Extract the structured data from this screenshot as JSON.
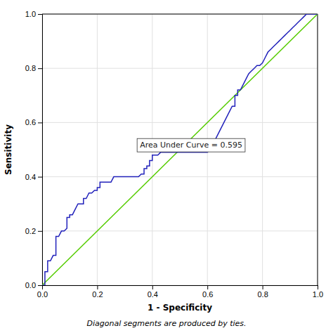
{
  "chart_data": {
    "type": "line",
    "x_label": "1 - Specificity",
    "y_label": "Sensitivity",
    "footnote": "Diagonal segments are produced by ties.",
    "annotations": [
      {
        "text": "Area Under Curve = 0.595",
        "x": 0.355,
        "y": 0.515
      }
    ],
    "xlim": [
      0.0,
      1.0
    ],
    "ylim": [
      0.0,
      1.0
    ],
    "xticks": [
      {
        "value": 0.0,
        "label": "0.0"
      },
      0.2,
      0.4,
      0.6,
      0.8,
      {
        "value": 1.0,
        "label": "1.0"
      }
    ],
    "yticks": [
      {
        "value": 0.0,
        "label": "0.0"
      },
      0.2,
      0.4,
      0.6,
      0.8,
      {
        "value": 1.0,
        "label": "1.0"
      }
    ],
    "grid": true,
    "series": [
      {
        "color": "#55cc00",
        "x": [
          0.0,
          1.0
        ],
        "values": [
          0.0,
          1.0
        ]
      },
      {
        "color": "#2222bb",
        "x": [
          0.0,
          0.01,
          0.01,
          0.02,
          0.02,
          0.03,
          0.04,
          0.05,
          0.05,
          0.06,
          0.07,
          0.08,
          0.09,
          0.09,
          0.1,
          0.1,
          0.11,
          0.12,
          0.13,
          0.14,
          0.15,
          0.15,
          0.16,
          0.17,
          0.18,
          0.19,
          0.2,
          0.2,
          0.21,
          0.21,
          0.22,
          0.22,
          0.23,
          0.24,
          0.25,
          0.26,
          0.27,
          0.28,
          0.29,
          0.3,
          0.31,
          0.32,
          0.33,
          0.34,
          0.35,
          0.36,
          0.37,
          0.37,
          0.38,
          0.38,
          0.39,
          0.39,
          0.4,
          0.4,
          0.41,
          0.42,
          0.43,
          0.44,
          0.45,
          0.46,
          0.47,
          0.48,
          0.49,
          0.5,
          0.51,
          0.52,
          0.53,
          0.54,
          0.55,
          0.56,
          0.57,
          0.58,
          0.59,
          0.6,
          0.61,
          0.62,
          0.63,
          0.64,
          0.65,
          0.66,
          0.67,
          0.68,
          0.69,
          0.7,
          0.7,
          0.71,
          0.71,
          0.72,
          0.73,
          0.74,
          0.75,
          0.76,
          0.77,
          0.78,
          0.79,
          0.8,
          0.81,
          0.82,
          0.83,
          0.84,
          0.85,
          0.86,
          0.87,
          0.88,
          0.89,
          0.9,
          0.91,
          0.92,
          0.93,
          0.94,
          0.95,
          0.96,
          0.97,
          0.98,
          0.99,
          1.0
        ],
        "values": [
          0.0,
          0.0,
          0.05,
          0.05,
          0.09,
          0.09,
          0.11,
          0.11,
          0.18,
          0.18,
          0.2,
          0.2,
          0.21,
          0.25,
          0.25,
          0.26,
          0.26,
          0.28,
          0.3,
          0.3,
          0.3,
          0.32,
          0.32,
          0.34,
          0.34,
          0.35,
          0.35,
          0.36,
          0.36,
          0.38,
          0.38,
          0.38,
          0.38,
          0.38,
          0.38,
          0.4,
          0.4,
          0.4,
          0.4,
          0.4,
          0.4,
          0.4,
          0.4,
          0.4,
          0.4,
          0.41,
          0.41,
          0.43,
          0.43,
          0.44,
          0.44,
          0.46,
          0.46,
          0.48,
          0.48,
          0.48,
          0.49,
          0.49,
          0.49,
          0.49,
          0.49,
          0.49,
          0.49,
          0.49,
          0.49,
          0.49,
          0.49,
          0.49,
          0.49,
          0.49,
          0.49,
          0.49,
          0.49,
          0.49,
          0.5,
          0.52,
          0.54,
          0.56,
          0.58,
          0.6,
          0.62,
          0.64,
          0.66,
          0.66,
          0.7,
          0.7,
          0.72,
          0.72,
          0.74,
          0.76,
          0.78,
          0.79,
          0.8,
          0.81,
          0.81,
          0.82,
          0.84,
          0.86,
          0.87,
          0.88,
          0.89,
          0.9,
          0.91,
          0.92,
          0.93,
          0.94,
          0.95,
          0.96,
          0.97,
          0.98,
          0.99,
          1.0,
          1.0,
          1.0,
          1.0,
          1.0
        ]
      }
    ]
  }
}
